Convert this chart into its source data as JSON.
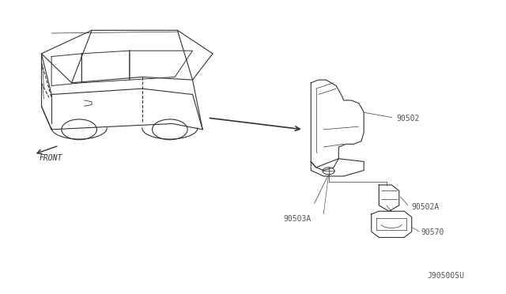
{
  "background_color": "#ffffff",
  "fig_width": 6.4,
  "fig_height": 3.72,
  "dpi": 100,
  "diagram_id": "J905005U",
  "front_label": "FRONT",
  "line_color": "#333333",
  "label_color": "#555555",
  "font_size_parts": 7,
  "font_size_diagram_id": 7,
  "font_size_front": 7
}
